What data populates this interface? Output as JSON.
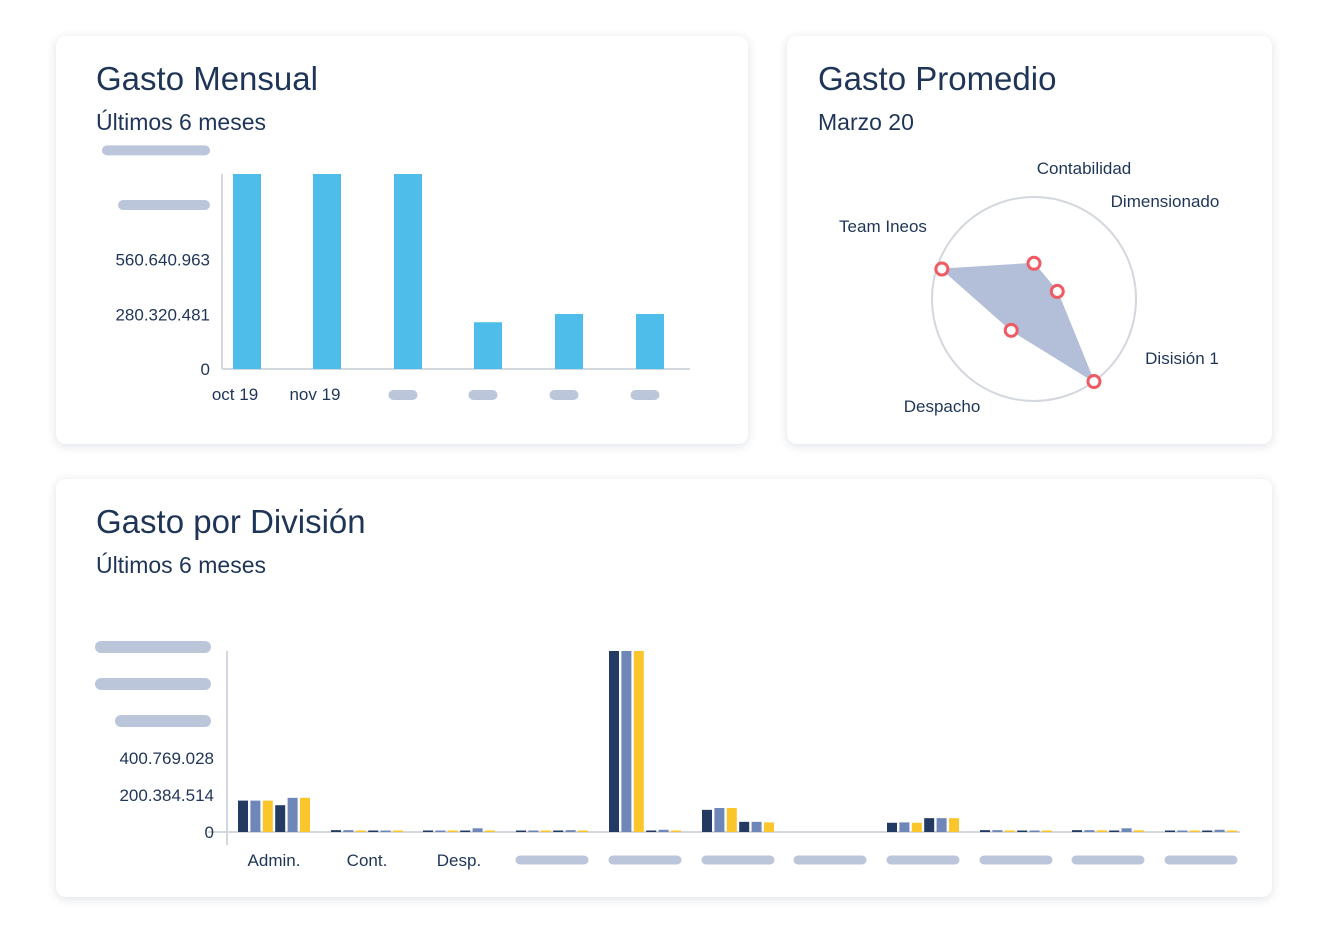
{
  "colors": {
    "title": "#1f3557",
    "bar_monthly": "#4fbdea",
    "axis": "#d3d7de",
    "placeholder": "#bcc6da",
    "radar_fill": "#b3bed8",
    "radar_marker": "#ef5b63",
    "series_dark": "#233a63",
    "series_mid": "#6e86b8",
    "series_gold": "#fbc52c"
  },
  "monthly": {
    "title": "Gasto Mensual",
    "subtitle": "Últimos 6 meses"
  },
  "average": {
    "title": "Gasto Promedio",
    "subtitle": "Marzo 20"
  },
  "division": {
    "title": "Gasto por División",
    "subtitle": "Últimos 6 meses"
  },
  "chart_data": [
    {
      "type": "bar",
      "categories": [
        "oct 19",
        "nov 19",
        "",
        "",
        "",
        ""
      ],
      "values": [
        1000000000,
        1000000000,
        1000000000,
        240000000,
        282000000,
        282000000
      ],
      "y_ticks": [
        {
          "value": 0,
          "label": "0"
        },
        {
          "value": 280320481,
          "label": "280.320.481"
        },
        {
          "value": 560640963,
          "label": "560.640.963"
        },
        {
          "value": 840961444,
          "label": ""
        },
        {
          "value": 1121281925,
          "label": ""
        }
      ],
      "ylim": [
        0,
        1000000000
      ],
      "grid": false,
      "legend": "none"
    },
    {
      "type": "radar",
      "axes": [
        "Contabilidad",
        "Dimensionado",
        "Disisión 1",
        "Despacho",
        "Team Ineos"
      ],
      "values": [
        0.35,
        0.24,
        1.0,
        0.38,
        0.95
      ],
      "rmax": 1,
      "grid": false,
      "legend": "none"
    },
    {
      "type": "bar",
      "categories": [
        "Admin.",
        "Cont.",
        "Desp.",
        "",
        "",
        "",
        "",
        "",
        "",
        "",
        ""
      ],
      "series": [
        {
          "values": [
            170000000,
            10000000,
            8000000,
            6000000,
            980000000,
            120000000,
            0,
            50000000,
            10000000,
            10000000,
            6000000
          ]
        },
        {
          "values": [
            170000000,
            10000000,
            8000000,
            6000000,
            980000000,
            130000000,
            0,
            52000000,
            10000000,
            10000000,
            6000000
          ]
        },
        {
          "values": [
            170000000,
            8000000,
            6000000,
            4000000,
            980000000,
            130000000,
            0,
            50000000,
            8000000,
            9000000,
            5000000
          ]
        },
        {
          "values": [
            145000000,
            6000000,
            5000000,
            3000000,
            5000000,
            55000000,
            0,
            75000000,
            8000000,
            7000000,
            4000000
          ]
        },
        {
          "values": [
            185000000,
            8000000,
            20000000,
            10000000,
            12000000,
            55000000,
            0,
            75000000,
            8000000,
            20000000,
            12000000
          ]
        },
        {
          "values": [
            185000000,
            5000000,
            6000000,
            2000000,
            5000000,
            52000000,
            0,
            75000000,
            5000000,
            9000000,
            5000000
          ]
        }
      ],
      "y_ticks": [
        {
          "value": 0,
          "label": "0"
        },
        {
          "value": 200384514,
          "label": "200.384.514"
        },
        {
          "value": 400769028,
          "label": "400.769.028"
        },
        {
          "value": 601153542,
          "label": ""
        },
        {
          "value": 801538056,
          "label": ""
        },
        {
          "value": 1001922570,
          "label": ""
        }
      ],
      "ylim": [
        0,
        980000000
      ],
      "grid": false,
      "legend": "none"
    }
  ]
}
